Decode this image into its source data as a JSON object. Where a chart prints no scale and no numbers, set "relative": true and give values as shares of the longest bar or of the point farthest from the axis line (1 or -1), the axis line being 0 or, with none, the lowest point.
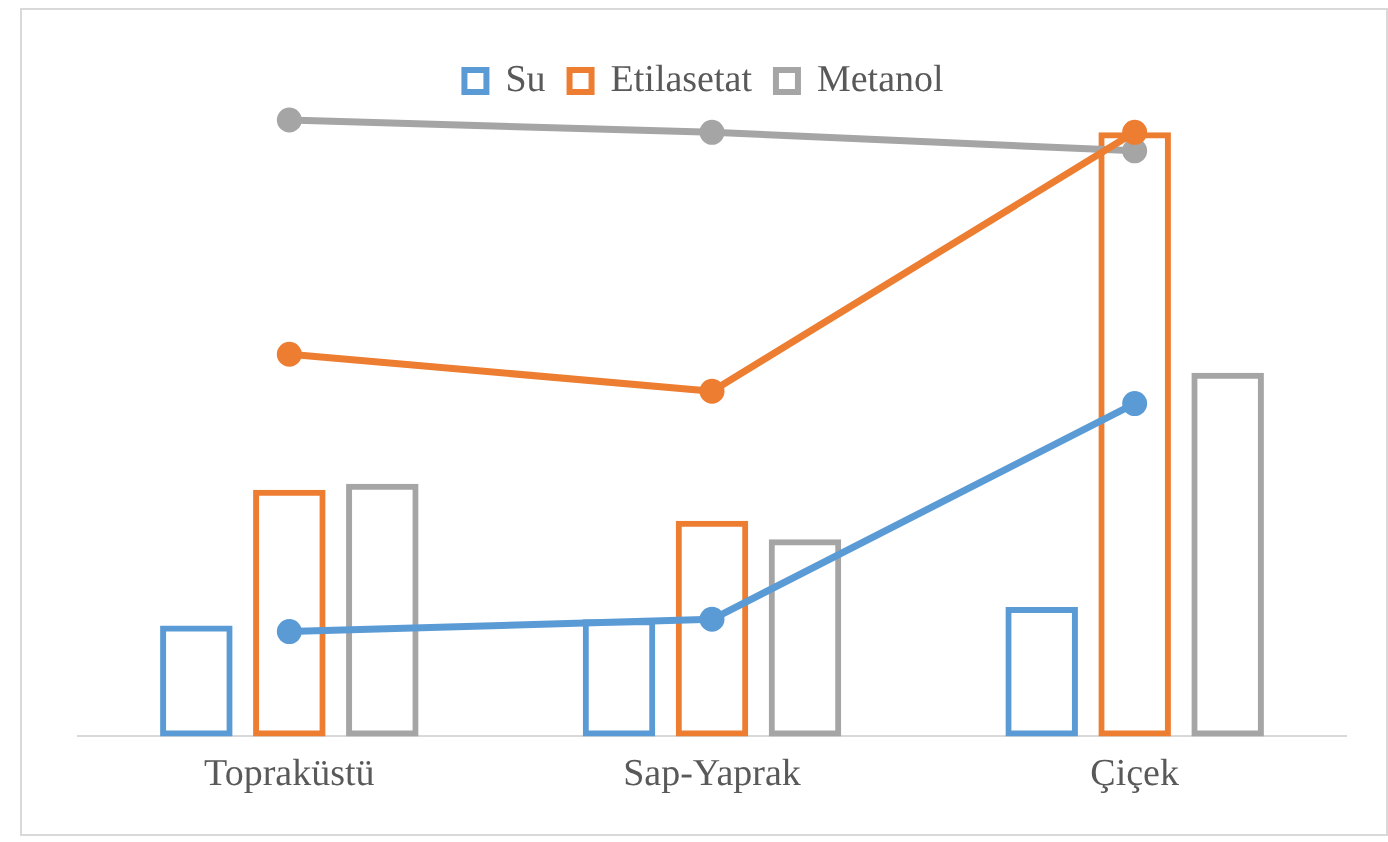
{
  "chart_data": {
    "type": "bar",
    "relative": true,
    "categories": [
      "Topraküstü",
      "Sap-Yaprak",
      "Çiçek"
    ],
    "legend": "top",
    "grid": false,
    "marker": "circle",
    "series": [
      {
        "name": "Su",
        "color": "#5b9bd5",
        "values": [
          0.18,
          0.19,
          0.21
        ]
      },
      {
        "name": "Etilasetat",
        "color": "#ed7d31",
        "values": [
          0.4,
          0.35,
          0.98
        ]
      },
      {
        "name": "Metanol",
        "color": "#a5a5a5",
        "values": [
          0.41,
          0.32,
          0.59
        ]
      },
      {
        "type": "line",
        "color": "#5b9bd5",
        "values": [
          0.17,
          0.19,
          0.54
        ]
      },
      {
        "type": "line",
        "color": "#ed7d31",
        "values": [
          0.62,
          0.56,
          0.98
        ]
      },
      {
        "type": "line",
        "color": "#a5a5a5",
        "values": [
          1,
          0.98,
          0.95
        ]
      }
    ]
  }
}
